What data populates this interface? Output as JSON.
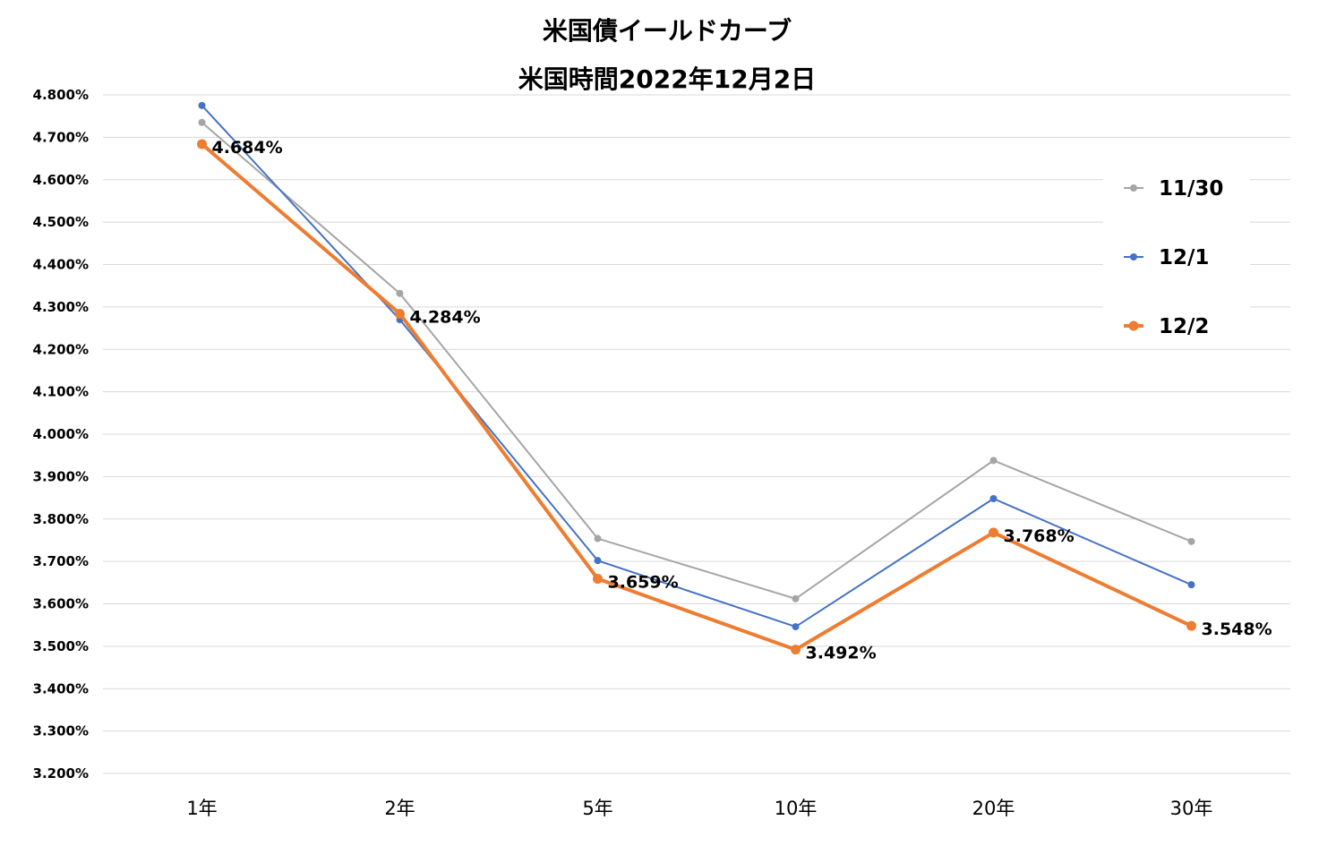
{
  "chart_data": {
    "type": "line",
    "title_lines": [
      "米国債イールドカーブ",
      "米国時間2022年12月2日"
    ],
    "xlabel": "",
    "ylabel": "",
    "categories": [
      "1年",
      "2年",
      "5年",
      "10年",
      "20年",
      "30年"
    ],
    "ylim": [
      3.2,
      4.8
    ],
    "ytick_labels": [
      "4.800%",
      "4.700%",
      "4.600%",
      "4.500%",
      "4.400%",
      "4.300%",
      "4.200%",
      "4.100%",
      "4.000%",
      "3.900%",
      "3.800%",
      "3.700%",
      "3.600%",
      "3.500%",
      "3.400%",
      "3.300%",
      "3.200%"
    ],
    "grid": true,
    "legend_position": "right",
    "series": [
      {
        "name": "11/30",
        "color": "#a5a5a5",
        "values": [
          4.735,
          4.332,
          3.754,
          3.612,
          3.938,
          3.747
        ]
      },
      {
        "name": "12/1",
        "color": "#4472c4",
        "values": [
          4.775,
          4.27,
          3.702,
          3.546,
          3.848,
          3.645
        ]
      },
      {
        "name": "12/2",
        "color": "#ed7d31",
        "values": [
          4.684,
          4.284,
          3.659,
          3.492,
          3.768,
          3.548
        ],
        "data_labels": [
          "4.684%",
          "4.284%",
          "3.659%",
          "3.492%",
          "3.768%",
          "3.548%"
        ]
      }
    ]
  }
}
